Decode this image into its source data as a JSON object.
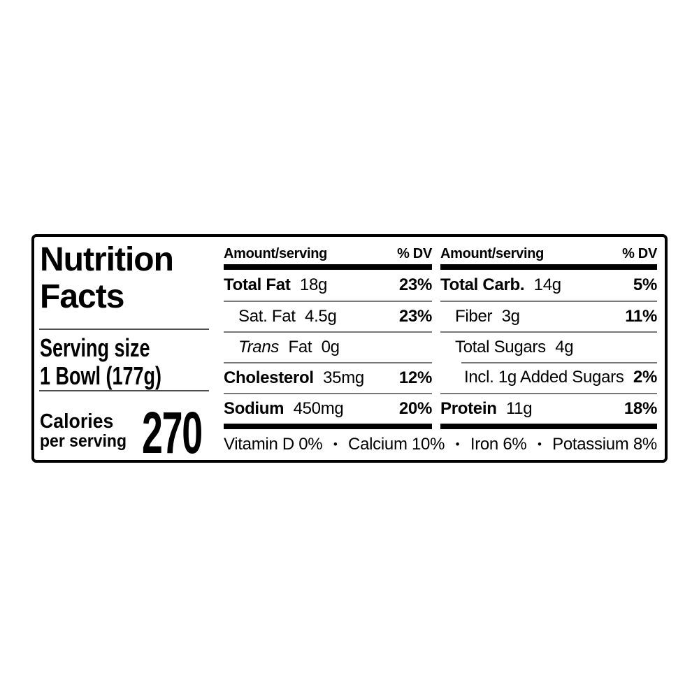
{
  "label": {
    "title_line1": "Nutrition",
    "title_line2": "Facts",
    "serving_size_label": "Serving size",
    "serving_size_value": "1 Bowl (177g)",
    "calories_label_line1": "Calories",
    "calories_label_line2": "per serving",
    "calories_value": "270"
  },
  "columns": [
    {
      "header": {
        "amount": "Amount/serving",
        "dv": "% DV"
      },
      "rows": [
        {
          "label": "Total Fat",
          "value": "18g",
          "dv": "23%"
        },
        {
          "label": "Sat. Fat",
          "value": "4.5g",
          "dv": "23%"
        },
        {
          "label_italic": "Trans",
          "label": "Fat",
          "value": "0g",
          "dv": ""
        },
        {
          "label": "Cholesterol",
          "value": "35mg",
          "dv": "12%"
        },
        {
          "label": "Sodium",
          "value": "450mg",
          "dv": "20%"
        }
      ]
    },
    {
      "header": {
        "amount": "Amount/serving",
        "dv": "% DV"
      },
      "rows": [
        {
          "label": "Total Carb.",
          "value": "14g",
          "dv": "5%"
        },
        {
          "label": "Fiber",
          "value": "3g",
          "dv": "11%"
        },
        {
          "label": "Total Sugars",
          "value": "4g",
          "dv": ""
        },
        {
          "label": "Incl. 1g Added Sugars",
          "value": "",
          "dv": "2%"
        },
        {
          "label": "Protein",
          "value": "11g",
          "dv": "18%"
        }
      ]
    }
  ],
  "micronutrients": {
    "separator": "•",
    "items": [
      "Vitamin D 0%",
      "Calcium 10%",
      "Iron 6%",
      "Potassium 8%"
    ]
  },
  "colors": {
    "text": "#000000",
    "thick_rule": "#000000",
    "thin_rule": "#787878",
    "background": "#ffffff"
  }
}
